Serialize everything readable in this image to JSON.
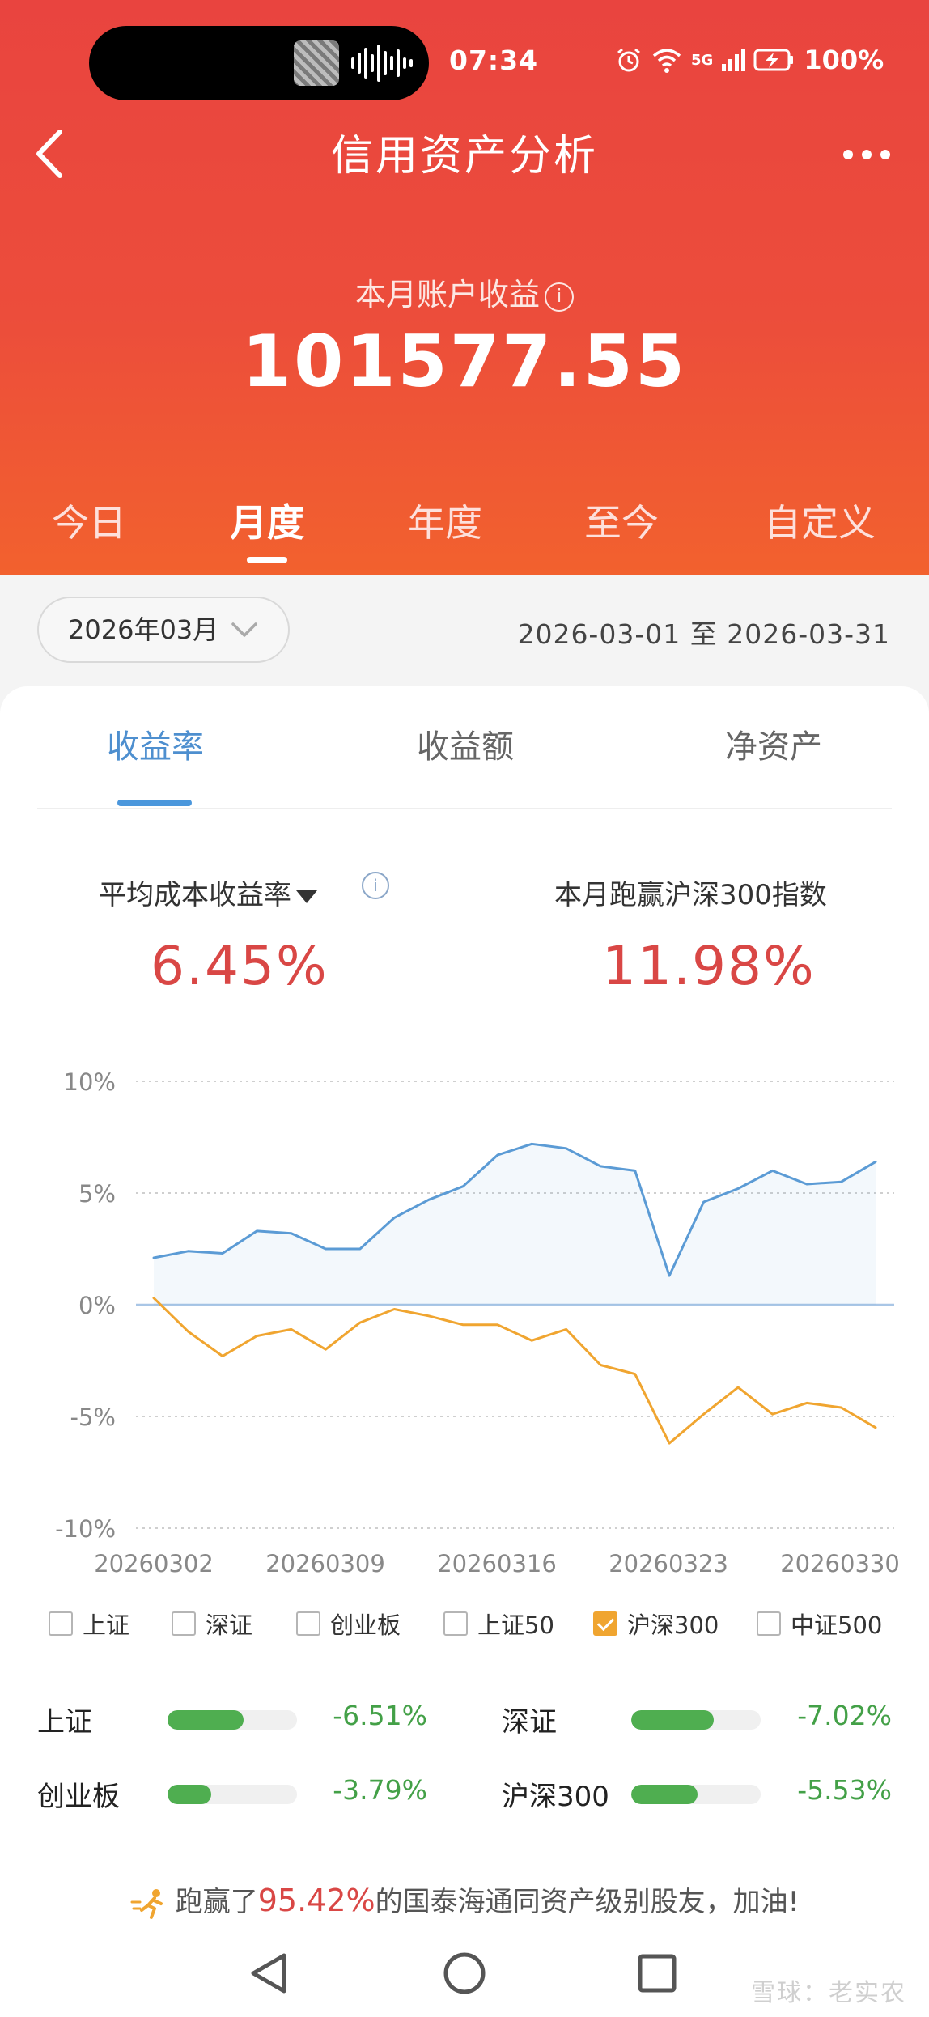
{
  "status_bar": {
    "time": "07:34",
    "network": "5G",
    "battery": "100%"
  },
  "header": {
    "title": "信用资产分析"
  },
  "earnings": {
    "label": "本月账户收益",
    "value": "101577.55"
  },
  "period_tabs": [
    {
      "label": "今日",
      "active": false
    },
    {
      "label": "月度",
      "active": true
    },
    {
      "label": "年度",
      "active": false
    },
    {
      "label": "至今",
      "active": false
    },
    {
      "label": "自定义",
      "active": false
    }
  ],
  "date_filter": {
    "month": "2026年03月",
    "range": "2026-03-01 至 2026-03-31"
  },
  "metric_tabs": [
    {
      "label": "收益率",
      "active": true
    },
    {
      "label": "收益额",
      "active": false
    },
    {
      "label": "净资产",
      "active": false
    }
  ],
  "stats": {
    "avg_cost_label": "平均成本收益率",
    "avg_cost_value": "6.45%",
    "beat_label": "本月跑赢沪深300指数",
    "beat_value": "11.98%"
  },
  "chart_data": {
    "type": "line",
    "x_tick_labels": [
      "20260302",
      "20260309",
      "20260316",
      "20260323",
      "20260330"
    ],
    "y_tick_labels": [
      "10%",
      "5%",
      "0%",
      "-5%",
      "-10%"
    ],
    "ylim": [
      -10,
      10
    ],
    "grid": true,
    "series": [
      {
        "color": "#5b9bd5",
        "values": [
          2.1,
          2.4,
          2.3,
          3.3,
          3.2,
          2.5,
          2.5,
          3.9,
          4.7,
          5.3,
          6.7,
          7.2,
          7.0,
          6.2,
          6.0,
          1.3,
          4.6,
          5.2,
          6.0,
          5.4,
          5.5,
          6.4
        ]
      },
      {
        "color": "#f0a530",
        "values": [
          0.3,
          -1.2,
          -2.3,
          -1.4,
          -1.1,
          -2.0,
          -0.8,
          -0.2,
          -0.5,
          -0.9,
          -0.9,
          -1.6,
          -1.1,
          -2.7,
          -3.1,
          -6.2,
          -4.9,
          -3.7,
          -4.9,
          -4.4,
          -4.6,
          -5.5
        ]
      }
    ]
  },
  "index_checkboxes": [
    {
      "label": "上证",
      "checked": false
    },
    {
      "label": "深证",
      "checked": false
    },
    {
      "label": "创业板",
      "checked": false
    },
    {
      "label": "上证50",
      "checked": false
    },
    {
      "label": "沪深300",
      "checked": true
    },
    {
      "label": "中证500",
      "checked": false
    }
  ],
  "index_returns": [
    {
      "name": "上证",
      "value": "-6.51%",
      "bar_fraction": 0.59
    },
    {
      "name": "深证",
      "value": "-7.02%",
      "bar_fraction": 0.64
    },
    {
      "name": "创业板",
      "value": "-3.79%",
      "bar_fraction": 0.34
    },
    {
      "name": "沪深300",
      "value": "-5.53%",
      "bar_fraction": 0.51
    }
  ],
  "beat_friends": {
    "prefix": "跑赢了",
    "percent": "95.42%",
    "suffix": "的国泰海通同资产级别股友，加油!"
  },
  "watermark": "雪球：老实农"
}
